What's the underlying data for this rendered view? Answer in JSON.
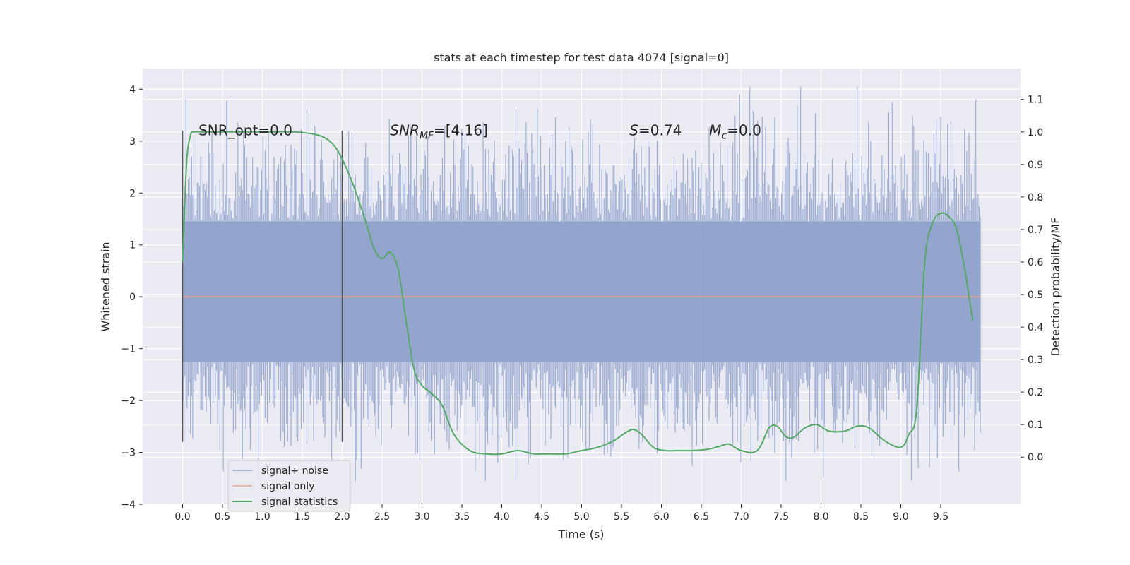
{
  "chart_data": {
    "type": "line",
    "title": "stats at each timestep for test data 4074 [signal=0]",
    "xlabel": "Time (s)",
    "ylabel": "Whitened strain",
    "y2label": "Detection probability/MF",
    "xlim": [
      -0.5,
      10.5
    ],
    "ylim": [
      -4,
      4.4
    ],
    "y2lim": [
      -0.145,
      1.195
    ],
    "xticks": [
      0.0,
      0.5,
      1.0,
      1.5,
      2.0,
      2.5,
      3.0,
      3.5,
      4.0,
      4.5,
      5.0,
      5.5,
      6.0,
      6.5,
      7.0,
      7.5,
      8.0,
      8.5,
      9.0,
      9.5
    ],
    "xtick_labels": [
      "0.0",
      "0.5",
      "1.0",
      "1.5",
      "2.0",
      "2.5",
      "3.0",
      "3.5",
      "4.0",
      "4.5",
      "5.0",
      "5.5",
      "6.0",
      "6.5",
      "7.0",
      "7.5",
      "8.0",
      "8.5",
      "9.0",
      "9.5"
    ],
    "yticks": [
      -4,
      -3,
      -2,
      -1,
      0,
      1,
      2,
      3,
      4
    ],
    "ytick_labels": [
      "−4",
      "−3",
      "−2",
      "−1",
      "0",
      "1",
      "2",
      "3",
      "4"
    ],
    "y2ticks": [
      0.0,
      0.1,
      0.2,
      0.3,
      0.4,
      0.5,
      0.6,
      0.7,
      0.8,
      0.9,
      1.0,
      1.1
    ],
    "y2tick_labels": [
      "0.0",
      "0.1",
      "0.2",
      "0.3",
      "0.4",
      "0.5",
      "0.6",
      "0.7",
      "0.8",
      "0.9",
      "1.0",
      "1.1"
    ],
    "grid": true,
    "legend_placement": "lower-left",
    "series": [
      {
        "name": "signal+ noise",
        "kind": "noise-band",
        "axis": "left",
        "color": "#8da0cb",
        "x_range": [
          0.0,
          10.0
        ],
        "envelope_core": [
          -1.25,
          1.45
        ],
        "envelope_peak": [
          -3.55,
          4.05
        ]
      },
      {
        "name": "signal only",
        "axis": "left",
        "color": "#e8a38a",
        "x": [
          0.0,
          10.0
        ],
        "y": [
          0.0,
          0.0
        ]
      },
      {
        "name": "signal statistics",
        "axis": "right",
        "color": "#55a868",
        "x": [
          0.0,
          0.05,
          0.1,
          0.15,
          0.3,
          0.6,
          1.0,
          1.4,
          1.7,
          1.85,
          1.95,
          2.05,
          2.15,
          2.3,
          2.4,
          2.5,
          2.6,
          2.7,
          2.8,
          2.9,
          3.0,
          3.1,
          3.25,
          3.4,
          3.6,
          3.8,
          4.0,
          4.2,
          4.4,
          4.6,
          4.8,
          5.0,
          5.2,
          5.4,
          5.55,
          5.65,
          5.75,
          5.9,
          6.05,
          6.2,
          6.4,
          6.6,
          6.75,
          6.85,
          7.0,
          7.2,
          7.35,
          7.45,
          7.55,
          7.65,
          7.8,
          7.95,
          8.1,
          8.3,
          8.45,
          8.6,
          8.8,
          9.0,
          9.1,
          9.2,
          9.3,
          9.4,
          9.5,
          9.6,
          9.7,
          9.8,
          9.9
        ],
        "y": [
          0.6,
          0.9,
          0.99,
          1.0,
          1.0,
          1.0,
          1.0,
          1.0,
          0.99,
          0.97,
          0.94,
          0.89,
          0.83,
          0.72,
          0.64,
          0.61,
          0.63,
          0.58,
          0.42,
          0.27,
          0.22,
          0.2,
          0.16,
          0.07,
          0.02,
          0.01,
          0.01,
          0.02,
          0.01,
          0.01,
          0.01,
          0.02,
          0.03,
          0.05,
          0.075,
          0.085,
          0.07,
          0.03,
          0.02,
          0.02,
          0.02,
          0.025,
          0.035,
          0.04,
          0.02,
          0.02,
          0.09,
          0.095,
          0.065,
          0.06,
          0.09,
          0.1,
          0.08,
          0.08,
          0.095,
          0.09,
          0.05,
          0.03,
          0.07,
          0.15,
          0.6,
          0.72,
          0.75,
          0.74,
          0.7,
          0.58,
          0.42
        ]
      }
    ],
    "vlines": [
      {
        "x": 0.0,
        "ymin": -2.8,
        "ymax": 3.2
      },
      {
        "x": 2.0,
        "ymin": -2.8,
        "ymax": 3.2
      }
    ],
    "annotations": [
      {
        "id": "snr-opt",
        "x": 0.2,
        "y": 3.25,
        "text": "SNR_opt=0.0",
        "italic_prefix": ""
      },
      {
        "id": "snr-mf",
        "x": 2.6,
        "y": 3.25,
        "italic_prefix": "SNR",
        "subscript": "MF",
        "text": "=[4.16]"
      },
      {
        "id": "s-stat",
        "x": 5.6,
        "y": 3.25,
        "italic_prefix": "S",
        "text": "=0.74"
      },
      {
        "id": "mc-stat",
        "x": 6.6,
        "y": 3.25,
        "italic_prefix": "M",
        "subscript": "c",
        "text": "=0.0"
      }
    ],
    "colors": {
      "background": "#eaeaf2",
      "grid": "#ffffff",
      "vline": "#555555"
    }
  }
}
